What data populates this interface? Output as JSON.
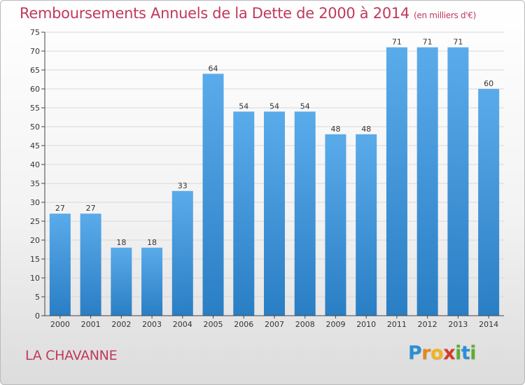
{
  "chart_data": {
    "type": "bar",
    "title": "Remboursements Annuels de la Dette de 2000 à 2014",
    "subtitle": "(en milliers d'€)",
    "categories": [
      "2000",
      "2001",
      "2002",
      "2003",
      "2004",
      "2005",
      "2006",
      "2007",
      "2008",
      "2009",
      "2010",
      "2011",
      "2012",
      "2013",
      "2014"
    ],
    "values": [
      27,
      27,
      18,
      18,
      33,
      64,
      54,
      54,
      54,
      48,
      48,
      71,
      71,
      71,
      60
    ],
    "yticks": [
      0,
      5,
      10,
      15,
      20,
      25,
      30,
      35,
      40,
      45,
      50,
      55,
      60,
      65,
      70,
      75
    ],
    "ylim": [
      0,
      75
    ],
    "xlabel": "",
    "ylabel": "",
    "grid": true,
    "colors": {
      "bar_top": "#5aabea",
      "bar_bottom": "#2a7ec4",
      "grid": "#d8d8d8",
      "axis": "#444444",
      "title": "#c0395c"
    }
  },
  "footer": {
    "commune": "LA CHAVANNE",
    "logo": {
      "letters": [
        "P",
        "r",
        "o",
        "x",
        "i",
        "t",
        "i"
      ],
      "colors": [
        "#2b8fd6",
        "#e08a1e",
        "#f2b21b",
        "#d8392b",
        "#5cae2e",
        "#2b8fd6",
        "#5cae2e"
      ]
    }
  }
}
